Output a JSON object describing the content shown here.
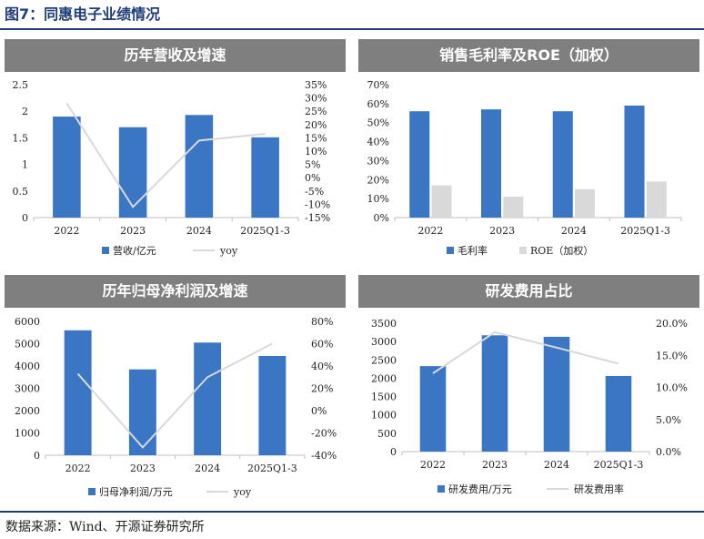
{
  "figure": {
    "title": "图7：同惠电子业绩情况",
    "source": "数据来源：Wind、开源证券研究所"
  },
  "colors": {
    "bar": "#3a76c4",
    "line": "#d9d9d9",
    "bar_light": "#d9d9d9",
    "header": "#7f7f7f",
    "rule": "#1f3e78"
  },
  "chart_data": [
    {
      "title": "历年营收及增速",
      "type": "bar",
      "categories": [
        "2022",
        "2023",
        "2024",
        "2025Q1-3"
      ],
      "series": [
        {
          "name": "营收/亿元",
          "type": "bar",
          "axis": "left",
          "values": [
            1.9,
            1.7,
            1.93,
            1.51
          ]
        },
        {
          "name": "yoy",
          "type": "line",
          "axis": "right",
          "values": [
            28,
            -11,
            14,
            16.5
          ]
        }
      ],
      "left_axis": {
        "min": 0,
        "max": 2.5,
        "ticks": [
          "0",
          "0.5",
          "1",
          "1.5",
          "2",
          "2.5"
        ]
      },
      "right_axis": {
        "min": -15,
        "max": 35,
        "ticks": [
          "-15%",
          "-10%",
          "-5%",
          "0%",
          "5%",
          "10%",
          "15%",
          "20%",
          "25%",
          "30%",
          "35%"
        ]
      },
      "legend": "bottom"
    },
    {
      "title": "销售毛利率及ROE（加权）",
      "type": "bar",
      "categories": [
        "2022",
        "2023",
        "2024",
        "2025Q1-3"
      ],
      "series": [
        {
          "name": "毛利率",
          "type": "bar",
          "axis": "left",
          "values": [
            56,
            57,
            56,
            59
          ]
        },
        {
          "name": "ROE（加权）",
          "type": "bar",
          "axis": "left",
          "values": [
            17,
            11,
            15,
            19
          ]
        }
      ],
      "left_axis": {
        "min": 0,
        "max": 70,
        "ticks": [
          "0%",
          "10%",
          "20%",
          "30%",
          "40%",
          "50%",
          "60%",
          "70%"
        ]
      },
      "legend": "bottom"
    },
    {
      "title": "历年归母净利润及增速",
      "type": "bar",
      "categories": [
        "2022",
        "2023",
        "2024",
        "2025Q1-3"
      ],
      "series": [
        {
          "name": "归母净利润/万元",
          "type": "bar",
          "axis": "left",
          "values": [
            5600,
            3850,
            5050,
            4450
          ]
        },
        {
          "name": "yoy",
          "type": "line",
          "axis": "right",
          "values": [
            33,
            -33,
            30,
            60
          ]
        }
      ],
      "left_axis": {
        "min": 0,
        "max": 6000,
        "ticks": [
          "0",
          "1000",
          "2000",
          "3000",
          "4000",
          "5000",
          "6000"
        ]
      },
      "right_axis": {
        "min": -40,
        "max": 80,
        "ticks": [
          "-40%",
          "-20%",
          "0%",
          "20%",
          "40%",
          "60%",
          "80%"
        ]
      },
      "legend": "bottom"
    },
    {
      "title": "研发费用占比",
      "type": "bar",
      "categories": [
        "2022",
        "2023",
        "2024",
        "2025Q1-3"
      ],
      "series": [
        {
          "name": "研发费用/万元",
          "type": "bar",
          "axis": "left",
          "values": [
            2330,
            3170,
            3130,
            2060
          ]
        },
        {
          "name": "研发费用率",
          "type": "line",
          "axis": "right",
          "values": [
            12.2,
            18.6,
            16.2,
            13.7
          ]
        }
      ],
      "left_axis": {
        "min": 0,
        "max": 3500,
        "ticks": [
          "0",
          "500",
          "1000",
          "1500",
          "2000",
          "2500",
          "3000",
          "3500"
        ]
      },
      "right_axis": {
        "min": 0,
        "max": 20,
        "ticks": [
          "0.0%",
          "5.0%",
          "10.0%",
          "15.0%",
          "20.0%"
        ]
      },
      "legend": "bottom"
    }
  ]
}
